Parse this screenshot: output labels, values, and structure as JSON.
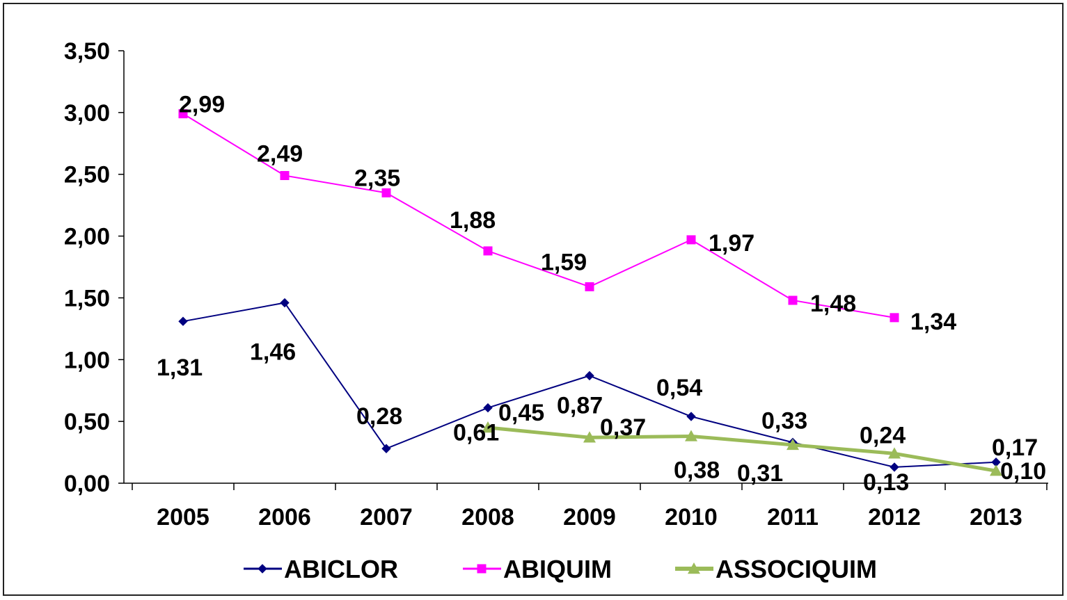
{
  "chart_data": {
    "type": "line",
    "categories": [
      "2005",
      "2006",
      "2007",
      "2008",
      "2009",
      "2010",
      "2011",
      "2012",
      "2013"
    ],
    "ylim": [
      0,
      3.5
    ],
    "yticks": [
      "0,00",
      "0,50",
      "1,00",
      "1,50",
      "2,00",
      "2,50",
      "3,00",
      "3,50"
    ],
    "grid": false,
    "legend_position": "bottom",
    "series": [
      {
        "name": "ABICLOR",
        "color": "#000080",
        "marker": "diamond",
        "values": [
          1.31,
          1.46,
          0.28,
          0.61,
          0.87,
          0.54,
          0.33,
          0.13,
          0.17
        ],
        "labels": [
          "1,31",
          "1,46",
          "0,28",
          "0,61",
          "0,87",
          "0,54",
          "0,33",
          "0,13",
          "0,17"
        ]
      },
      {
        "name": "ABIQUIM",
        "color": "#FF00FF",
        "marker": "square",
        "values": [
          2.99,
          2.49,
          2.35,
          1.88,
          1.59,
          1.97,
          1.48,
          1.34,
          null
        ],
        "labels": [
          "2,99",
          "2,49",
          "2,35",
          "1,88",
          "1,59",
          "1,97",
          "1,48",
          "1,34",
          null
        ]
      },
      {
        "name": "ASSOCIQUIM",
        "color": "#9BBB59",
        "marker": "triangle",
        "values": [
          null,
          null,
          null,
          0.45,
          0.37,
          0.38,
          0.31,
          0.24,
          0.1
        ],
        "labels": [
          null,
          null,
          null,
          "0,45",
          "0,37",
          "0,38",
          "0,31",
          "0,24",
          "0,10"
        ]
      }
    ]
  }
}
